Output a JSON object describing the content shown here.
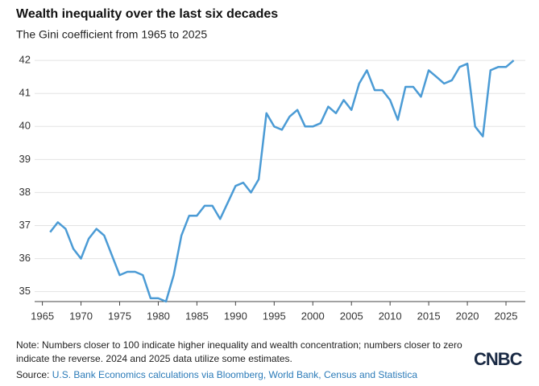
{
  "chart_data": {
    "type": "line",
    "title": "Wealth inequality over the last six decades",
    "subtitle": "The Gini coefficient from 1965 to 2025",
    "x": [
      1966,
      1967,
      1968,
      1969,
      1970,
      1971,
      1972,
      1973,
      1974,
      1975,
      1976,
      1977,
      1978,
      1979,
      1980,
      1981,
      1982,
      1983,
      1984,
      1985,
      1986,
      1987,
      1988,
      1989,
      1990,
      1991,
      1992,
      1993,
      1994,
      1995,
      1996,
      1997,
      1998,
      1999,
      2000,
      2001,
      2002,
      2003,
      2004,
      2005,
      2006,
      2007,
      2008,
      2009,
      2010,
      2011,
      2012,
      2013,
      2014,
      2015,
      2016,
      2017,
      2018,
      2019,
      2020,
      2021,
      2022,
      2023,
      2024,
      2025,
      2026
    ],
    "values": [
      36.8,
      37.1,
      36.9,
      36.3,
      36.0,
      36.6,
      36.9,
      36.7,
      36.1,
      35.5,
      35.6,
      35.6,
      35.5,
      34.8,
      34.8,
      34.7,
      35.5,
      36.7,
      37.3,
      37.3,
      37.6,
      37.6,
      37.2,
      37.7,
      38.2,
      38.3,
      38.0,
      38.4,
      40.4,
      40.0,
      39.9,
      40.3,
      40.5,
      40.0,
      40.0,
      40.1,
      40.6,
      40.4,
      40.8,
      40.5,
      41.3,
      41.7,
      41.1,
      41.1,
      40.8,
      40.2,
      41.2,
      41.2,
      40.9,
      41.7,
      41.5,
      41.3,
      41.4,
      41.8,
      41.9,
      40.0,
      39.7,
      41.7,
      41.8,
      41.8,
      42.0
    ],
    "color": "#4b9bd5",
    "xlim": [
      1964,
      2027.5
    ],
    "xticks": [
      1965,
      1970,
      1975,
      1980,
      1985,
      1990,
      1995,
      2000,
      2005,
      2010,
      2015,
      2020,
      2025
    ],
    "ylim": [
      34.7,
      42.1
    ],
    "yticks": [
      35,
      36,
      37,
      38,
      39,
      40,
      41,
      42
    ],
    "grid": true,
    "note": "Note: Numbers closer to 100 indicate higher inequality and wealth concentration; numbers closer to zero indicate the reverse. 2024 and 2025 data utilize some estimates.",
    "source_label": "Source:",
    "source": "U.S. Bank Economics calculations via Bloomberg, World Bank, Census and Statistica",
    "logo": "CNBC"
  }
}
